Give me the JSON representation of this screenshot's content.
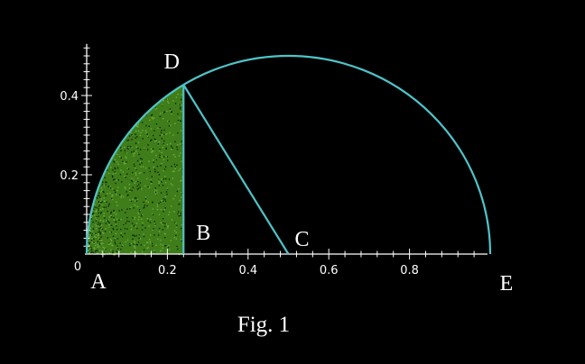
{
  "figure": {
    "caption": "Fig. 1",
    "colors": {
      "background": "#000000",
      "curve": "#4fc3c8",
      "axes": "#ffffff",
      "shading": "#3f7d1a",
      "text": "#ffffff"
    }
  },
  "chart_data": {
    "type": "diagram",
    "title": "",
    "xlabel": "",
    "ylabel": "",
    "xlim": [
      0,
      1
    ],
    "ylim": [
      0,
      0.5
    ],
    "x_ticks": [
      {
        "value": 0,
        "label": "0"
      },
      {
        "value": 0.2,
        "label": "0.2"
      },
      {
        "value": 0.4,
        "label": "0.4"
      },
      {
        "value": 0.6,
        "label": "0.6"
      },
      {
        "value": 0.8,
        "label": "0.8"
      }
    ],
    "y_ticks": [
      {
        "value": 0.2,
        "label": "0.2"
      },
      {
        "value": 0.4,
        "label": "0.4"
      }
    ],
    "semicircle": {
      "center": [
        0.5,
        0
      ],
      "radius": 0.5
    },
    "shaded_region": {
      "x_from": 0,
      "x_to": 0.24
    },
    "points": [
      {
        "label": "A",
        "x": 0,
        "y": 0
      },
      {
        "label": "B",
        "x": 0.24,
        "y": 0
      },
      {
        "label": "C",
        "x": 0.5,
        "y": 0
      },
      {
        "label": "D",
        "x": 0.24,
        "y": 0.427
      },
      {
        "label": "E",
        "x": 1,
        "y": 0
      }
    ],
    "segments": [
      {
        "from": "B",
        "to": "D"
      },
      {
        "from": "D",
        "to": "C"
      }
    ]
  }
}
